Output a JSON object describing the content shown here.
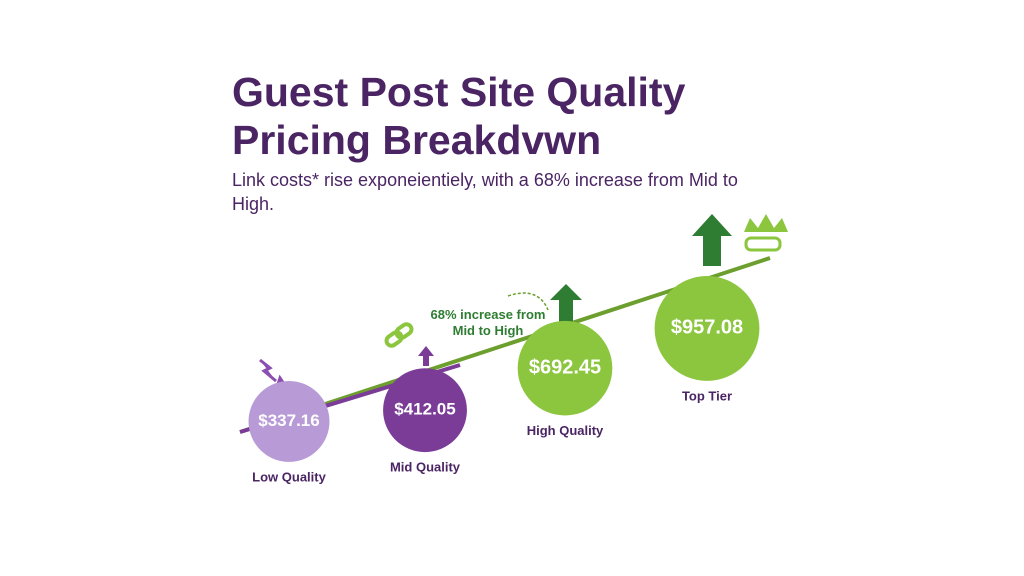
{
  "chart_data": {
    "type": "bubble",
    "title_lines": [
      "Guest Post Site Quality",
      "Pricing Breakdvwn"
    ],
    "subtitle": "Link costs* rise exponeientiely, with a 68% increase from Mid to High.",
    "annotation": "68% increase from Mid to High",
    "categories": [
      "Low Quality",
      "Mid Quality",
      "High Quality",
      "Top Tier"
    ],
    "values": [
      337.16,
      412.05,
      692.45,
      957.08
    ],
    "value_labels": [
      "$337.16",
      "$412.05",
      "$692.45",
      "$957.08"
    ],
    "colors": [
      "#b89bd6",
      "#7b3c98",
      "#8cc63f",
      "#8cc63f"
    ]
  }
}
